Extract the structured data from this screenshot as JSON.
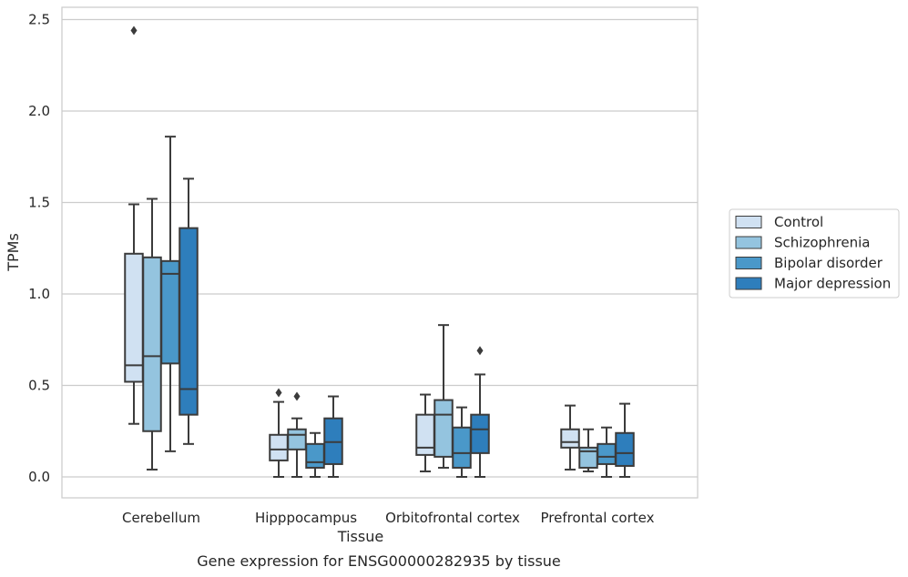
{
  "chart_data": {
    "type": "boxplot",
    "caption": "Gene expression for ENSG00000282935 by tissue",
    "xlabel": "Tissue",
    "ylabel": "TPMs",
    "ylim": [
      -0.12,
      2.57
    ],
    "yticks": [
      0.0,
      0.5,
      1.0,
      1.5,
      2.0,
      2.5
    ],
    "ytick_labels": [
      "0.0",
      "0.5",
      "1.0",
      "1.5",
      "2.0",
      "2.5"
    ],
    "grid": "horizontal",
    "legend_position": "right",
    "categories": [
      "Cerebellum",
      "Hipppocampus",
      "Orbitofrontal cortex",
      "Prefrontal cortex"
    ],
    "series": [
      {
        "name": "Control",
        "color": "#d0e1f2",
        "boxes": [
          {
            "whislo": 0.29,
            "q1": 0.52,
            "med": 0.61,
            "q3": 1.22,
            "whishi": 1.49,
            "fliers": [
              2.44
            ]
          },
          {
            "whislo": 0.0,
            "q1": 0.09,
            "med": 0.15,
            "q3": 0.23,
            "whishi": 0.41,
            "fliers": [
              0.46
            ]
          },
          {
            "whislo": 0.03,
            "q1": 0.12,
            "med": 0.16,
            "q3": 0.34,
            "whishi": 0.45,
            "fliers": []
          },
          {
            "whislo": 0.04,
            "q1": 0.16,
            "med": 0.19,
            "q3": 0.26,
            "whishi": 0.39,
            "fliers": []
          }
        ]
      },
      {
        "name": "Schizophrenia",
        "color": "#94c4df",
        "boxes": [
          {
            "whislo": 0.04,
            "q1": 0.25,
            "med": 0.66,
            "q3": 1.2,
            "whishi": 1.52,
            "fliers": []
          },
          {
            "whislo": 0.0,
            "q1": 0.15,
            "med": 0.23,
            "q3": 0.26,
            "whishi": 0.32,
            "fliers": [
              0.44
            ]
          },
          {
            "whislo": 0.05,
            "q1": 0.11,
            "med": 0.34,
            "q3": 0.42,
            "whishi": 0.83,
            "fliers": []
          },
          {
            "whislo": 0.03,
            "q1": 0.05,
            "med": 0.14,
            "q3": 0.16,
            "whishi": 0.26,
            "fliers": []
          }
        ]
      },
      {
        "name": "Bipolar disorder",
        "color": "#4a98c9",
        "boxes": [
          {
            "whislo": 0.14,
            "q1": 0.62,
            "med": 1.11,
            "q3": 1.18,
            "whishi": 1.86,
            "fliers": []
          },
          {
            "whislo": 0.0,
            "q1": 0.05,
            "med": 0.08,
            "q3": 0.18,
            "whishi": 0.24,
            "fliers": []
          },
          {
            "whislo": 0.0,
            "q1": 0.05,
            "med": 0.13,
            "q3": 0.27,
            "whishi": 0.38,
            "fliers": []
          },
          {
            "whislo": 0.0,
            "q1": 0.07,
            "med": 0.11,
            "q3": 0.18,
            "whishi": 0.27,
            "fliers": []
          }
        ]
      },
      {
        "name": "Major depression",
        "color": "#2e7ebc",
        "boxes": [
          {
            "whislo": 0.18,
            "q1": 0.34,
            "med": 0.48,
            "q3": 1.36,
            "whishi": 1.63,
            "fliers": []
          },
          {
            "whislo": 0.0,
            "q1": 0.07,
            "med": 0.19,
            "q3": 0.32,
            "whishi": 0.44,
            "fliers": []
          },
          {
            "whislo": 0.0,
            "q1": 0.13,
            "med": 0.26,
            "q3": 0.34,
            "whishi": 0.56,
            "fliers": [
              0.69
            ]
          },
          {
            "whislo": 0.0,
            "q1": 0.06,
            "med": 0.13,
            "q3": 0.24,
            "whishi": 0.4,
            "fliers": []
          }
        ]
      }
    ]
  }
}
